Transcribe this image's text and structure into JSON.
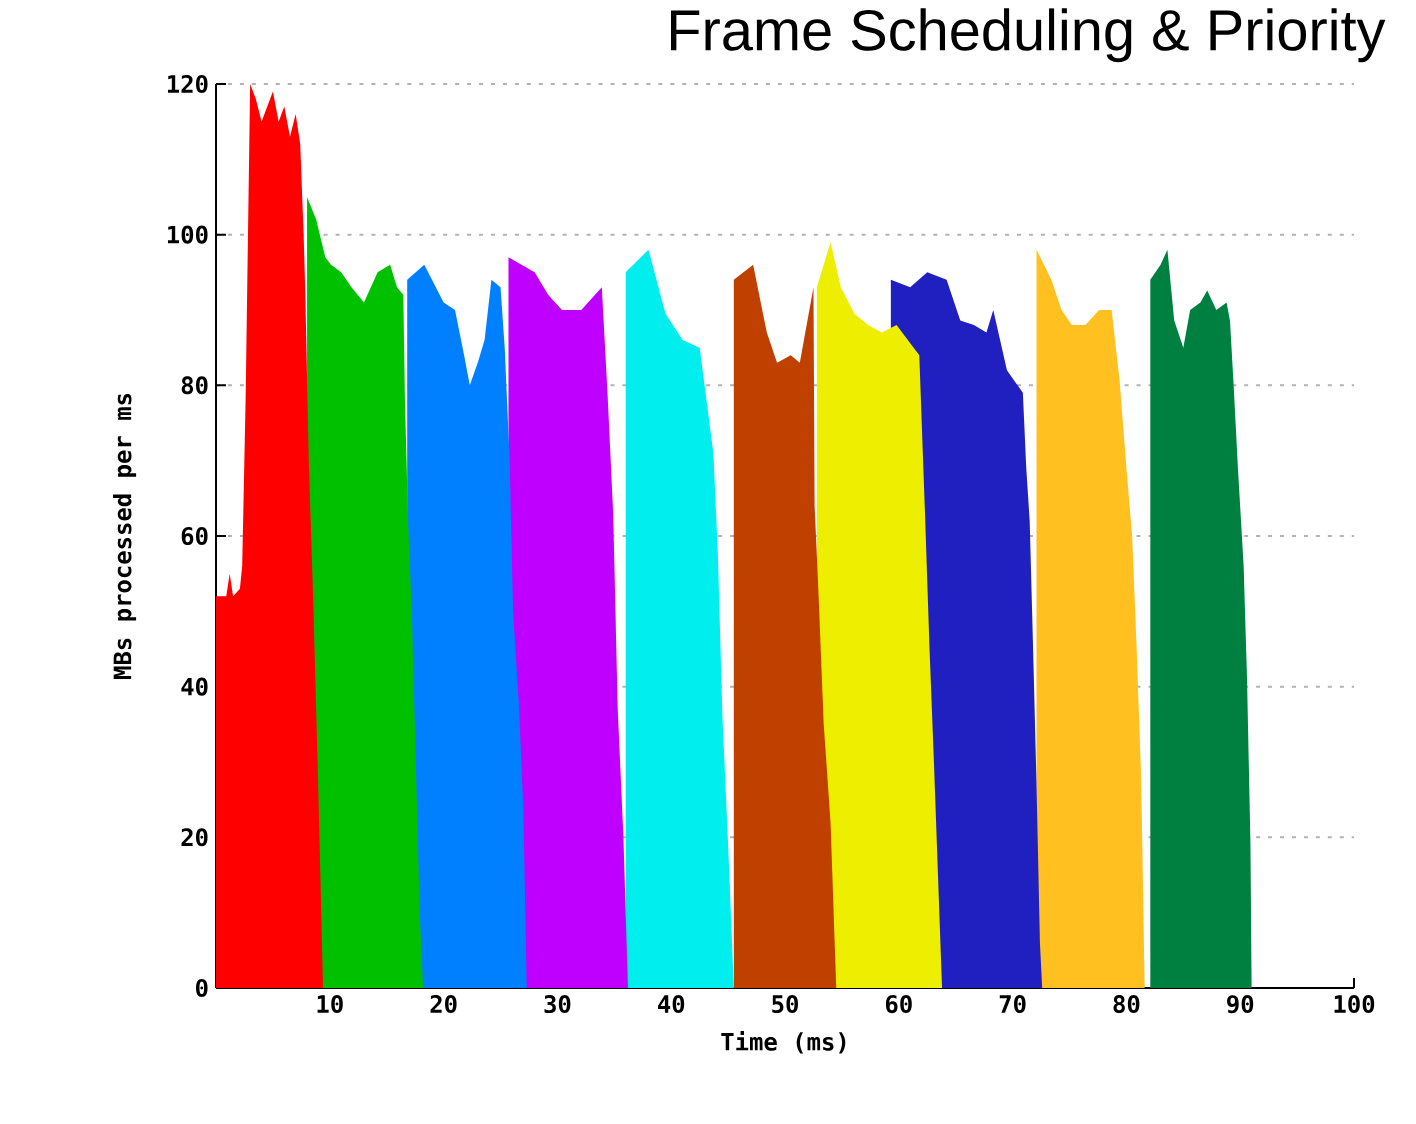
{
  "chart_data": {
    "type": "area",
    "title": "Frame Scheduling & Priority",
    "xlabel": "Time (ms)",
    "ylabel": "MBs processed per ms",
    "xlim": [
      0,
      100
    ],
    "xticks": [
      10,
      20,
      30,
      40,
      50,
      60,
      70,
      80,
      90,
      100
    ],
    "ylim": [
      0,
      120
    ],
    "yticks": [
      0,
      20,
      40,
      60,
      80,
      100,
      120
    ],
    "grid": "y",
    "series": [
      {
        "color": "#ff0000",
        "x": [
          0,
          0.9,
          1.2,
          1.5,
          2.1,
          2.3,
          2.6,
          3.0,
          3.5,
          4.0,
          4.5,
          5.0,
          5.5,
          6.0,
          6.5,
          7.0,
          7.4,
          7.7,
          7.85,
          8.15,
          8.55,
          8.96,
          9.31,
          9.4
        ],
        "values": [
          52,
          52,
          55,
          52,
          53,
          56,
          78,
          120,
          118,
          115,
          117,
          119,
          115,
          117,
          113,
          116,
          112,
          100,
          92,
          70,
          51,
          28,
          6,
          0
        ]
      },
      {
        "color": "#00c000",
        "x": [
          8.0,
          8.8,
          9.6,
          10.1,
          11.0,
          11.9,
          13.0,
          14.2,
          15.3,
          15.9,
          16.46,
          16.6,
          16.9,
          17.2,
          17.5,
          17.9,
          18.2
        ],
        "values": [
          105,
          102,
          97,
          96,
          95,
          93,
          91,
          95,
          96,
          93,
          92,
          78,
          61,
          50,
          33,
          10,
          0
        ]
      },
      {
        "color": "#0080ff",
        "x": [
          16.8,
          18.3,
          20.0,
          21.0,
          21.8,
          22.3,
          23.0,
          23.6,
          24.2,
          25.0,
          25.37,
          25.8,
          26.1,
          26.6,
          27.0,
          27.3
        ],
        "values": [
          94,
          96,
          91,
          90,
          84,
          80,
          83,
          86,
          94,
          93,
          85,
          70,
          50,
          38,
          24,
          0
        ]
      },
      {
        "color": "#c000ff",
        "x": [
          25.7,
          28.0,
          29.2,
          30.4,
          32.1,
          33.9,
          34.4,
          34.9,
          35.3,
          35.8,
          36.2
        ],
        "values": [
          97,
          95,
          92,
          90,
          90,
          93,
          79,
          63,
          37,
          20,
          0
        ]
      },
      {
        "color": "#00eeee",
        "x": [
          36.0,
          38.0,
          39.5,
          41.0,
          42.5,
          43.7,
          44.1,
          44.5,
          45.0,
          45.5
        ],
        "values": [
          95,
          98,
          89.5,
          86,
          85,
          71,
          57.6,
          36,
          19,
          0
        ]
      },
      {
        "color": "#c04000",
        "x": [
          45.5,
          47.2,
          48.4,
          49.3,
          50.5,
          51.3,
          52.5,
          52.6,
          52.9,
          53.4,
          54.0,
          54.5
        ],
        "values": [
          94,
          96,
          87,
          83,
          84,
          83,
          93,
          64,
          54,
          35,
          22,
          0
        ]
      },
      {
        "color": "#eeee00",
        "x": [
          52.8,
          54.0,
          54.9,
          56.1,
          57.3,
          58.5,
          59.8,
          61.8,
          62.3,
          62.7,
          63.1,
          63.5,
          63.8
        ],
        "values": [
          93,
          99,
          93,
          89.5,
          88,
          87,
          88,
          84,
          63,
          45,
          29.4,
          12.5,
          0
        ]
      },
      {
        "color": "#2020c0",
        "x": [
          59.3,
          61.0,
          62.5,
          64.2,
          65.4,
          66.6,
          67.7,
          68.3,
          69.5,
          70.9,
          71.2,
          71.5,
          71.8,
          72.1,
          72.4,
          72.6
        ],
        "values": [
          94,
          93,
          95,
          94,
          88.6,
          88,
          87,
          90,
          82,
          79,
          69,
          62,
          45,
          27,
          6,
          0
        ]
      },
      {
        "color": "#ffc020",
        "x": [
          72.1,
          73.4,
          74.3,
          75.2,
          76.4,
          77.6,
          78.7,
          79.4,
          80.0,
          80.5,
          80.9,
          81.3,
          81.6
        ],
        "values": [
          98,
          94,
          90,
          88,
          88,
          90,
          90,
          80.6,
          69,
          60,
          45,
          27.6,
          0
        ]
      },
      {
        "color": "#008040",
        "x": [
          82.1,
          83.0,
          83.6,
          84.2,
          85.0,
          85.6,
          86.5,
          87.1,
          87.9,
          88.8,
          89.1,
          89.4,
          89.8,
          90.3,
          90.6,
          90.9,
          91.0
        ],
        "values": [
          94,
          96,
          98,
          88.6,
          85,
          90,
          91,
          92.6,
          90,
          91,
          88.6,
          80.6,
          69,
          56,
          41,
          19,
          0
        ]
      }
    ]
  }
}
